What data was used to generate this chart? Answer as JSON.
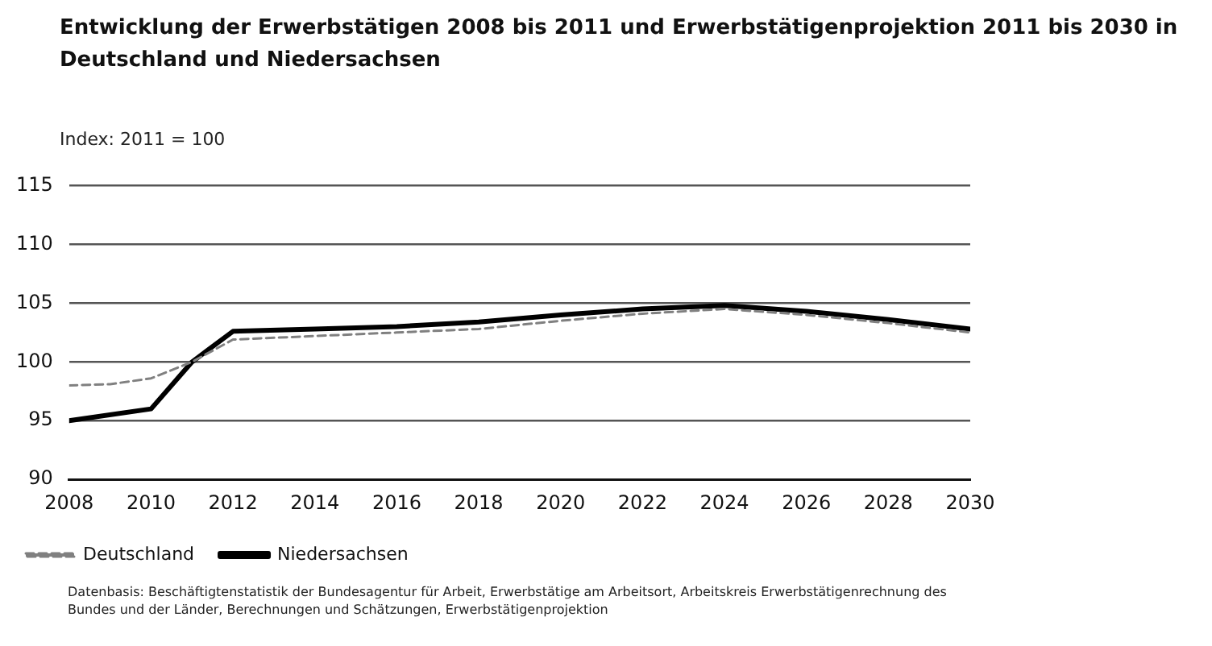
{
  "chart_data": {
    "type": "line",
    "title": "Entwicklung der Erwerbstätigen 2008 bis 2011 und Erwerbstätigenprojektion 2011 bis 2030 in Deutschland und Niedersachsen",
    "ylabel": "Index: 2011 = 100",
    "series": [
      {
        "name": "Deutschland",
        "color": "#808080",
        "line_style": "dashed",
        "x": [
          2008,
          2009,
          2010,
          2011,
          2012,
          2014,
          2016,
          2018,
          2020,
          2022,
          2024,
          2026,
          2028,
          2030
        ],
        "values": [
          98,
          98.1,
          98.6,
          100,
          101.9,
          102.2,
          102.5,
          102.8,
          103.5,
          104.1,
          104.5,
          104,
          103.3,
          102.5
        ]
      },
      {
        "name": "Niedersachsen",
        "color": "#000000",
        "line_style": "solid",
        "x": [
          2008,
          2010,
          2011,
          2012,
          2014,
          2016,
          2018,
          2020,
          2022,
          2024,
          2026,
          2028,
          2030
        ],
        "values": [
          95,
          96,
          100,
          102.6,
          102.8,
          103,
          103.4,
          104,
          104.5,
          104.8,
          104.3,
          103.6,
          102.8
        ]
      }
    ],
    "xlim": [
      2008,
      2030
    ],
    "xticks": [
      2008,
      2010,
      2012,
      2014,
      2016,
      2018,
      2020,
      2022,
      2024,
      2026,
      2028,
      2030
    ],
    "ylim": [
      90,
      115
    ],
    "yticks": [
      90,
      95,
      100,
      105,
      110,
      115
    ],
    "grid": "y",
    "legend": "bottom left",
    "marker": "none",
    "annotations": [
      "Datenbasis: Beschäftigtenstatistik der Bundesagentur für Arbeit, Erwerbstätige am Arbeitsort, Arbeitskreis Erwerbstätigenrechnung des Bundes und der Länder, Berechnungen und Schätzungen, Erwerbstätigenprojektion"
    ]
  }
}
